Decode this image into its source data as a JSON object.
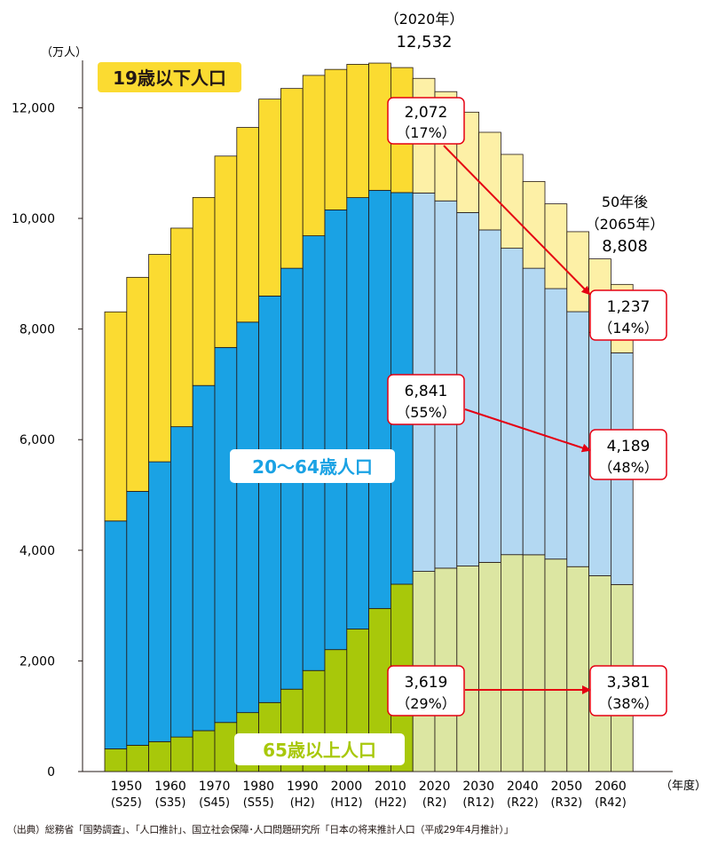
{
  "chart_data": {
    "type": "stacked-bar",
    "y_unit_label": "（万人）",
    "x_unit_label": "（年度）",
    "ylim": [
      0,
      13000
    ],
    "yticks": [
      0,
      2000,
      4000,
      6000,
      8000,
      10000,
      12000
    ],
    "ytick_labels": [
      "0",
      "2,000",
      "4,000",
      "6,000",
      "8,000",
      "10,000",
      "12,000"
    ],
    "years": [
      1950,
      1955,
      1960,
      1965,
      1970,
      1975,
      1980,
      1985,
      1990,
      1995,
      2000,
      2005,
      2010,
      2015,
      2020,
      2025,
      2030,
      2035,
      2040,
      2045,
      2050,
      2055,
      2060,
      2065
    ],
    "projection_start_index": 14,
    "x_tick_labels": [
      {
        "year": "1950",
        "era": "(S25)"
      },
      {
        "year": "1960",
        "era": "(S35)"
      },
      {
        "year": "1970",
        "era": "(S45)"
      },
      {
        "year": "1980",
        "era": "(S55)"
      },
      {
        "year": "1990",
        "era": "(H2)"
      },
      {
        "year": "2000",
        "era": "(H12)"
      },
      {
        "year": "2010",
        "era": "(H22)"
      },
      {
        "year": "2020",
        "era": "(R2)"
      },
      {
        "year": "2030",
        "era": "(R12)"
      },
      {
        "year": "2040",
        "era": "(R22)"
      },
      {
        "year": "2050",
        "era": "(R32)"
      },
      {
        "year": "2060",
        "era": "(R42)"
      }
    ],
    "series": [
      {
        "name": "65歳以上人口",
        "color": "#a8c80a",
        "projection_color": "#dce6a2",
        "values": [
          410,
          475,
          540,
          624,
          739,
          887,
          1065,
          1247,
          1489,
          1826,
          2204,
          2576,
          2948,
          3387,
          3619,
          3677,
          3716,
          3782,
          3921,
          3919,
          3841,
          3704,
          3540,
          3381
        ]
      },
      {
        "name": "20～64歳人口",
        "color": "#1aa2e4",
        "projection_color": "#b3d8f2",
        "values": [
          4120,
          4590,
          5060,
          5610,
          6240,
          6780,
          7060,
          7350,
          7610,
          7860,
          7950,
          7800,
          7560,
          7080,
          6841,
          6640,
          6390,
          6010,
          5540,
          5180,
          4890,
          4610,
          4400,
          4189
        ]
      },
      {
        "name": "19歳以下人口",
        "color": "#fbdb31",
        "projection_color": "#fdf0a6",
        "values": [
          3780,
          3870,
          3750,
          3590,
          3400,
          3460,
          3520,
          3560,
          3250,
          2900,
          2540,
          2410,
          2300,
          2260,
          2072,
          1975,
          1815,
          1765,
          1696,
          1569,
          1532,
          1446,
          1328,
          1237
        ]
      }
    ],
    "series_labels": {
      "young": "19歳以下人口",
      "working": "20～64歳人口",
      "elderly": "65歳以上人口"
    },
    "annotations": {
      "peak_year": "（2020年）",
      "peak_total": "12,532",
      "later_head": "50年後",
      "later_year": "（2065年）",
      "later_total": "8,808",
      "young_2020_value": "2,072",
      "young_2020_pct": "（17%）",
      "young_2065_value": "1,237",
      "young_2065_pct": "（14%）",
      "working_2020_value": "6,841",
      "working_2020_pct": "（55%）",
      "working_2065_value": "4,189",
      "working_2065_pct": "（48%）",
      "elderly_2020_value": "3,619",
      "elderly_2020_pct": "（29%）",
      "elderly_2065_value": "3,381",
      "elderly_2065_pct": "（38%）"
    }
  },
  "source_note": "（出典）総務省「国勢調査」、「人口推計」、国立社会保障･人口問題研究所「日本の将来推計人口（平成29年4月推計）」"
}
